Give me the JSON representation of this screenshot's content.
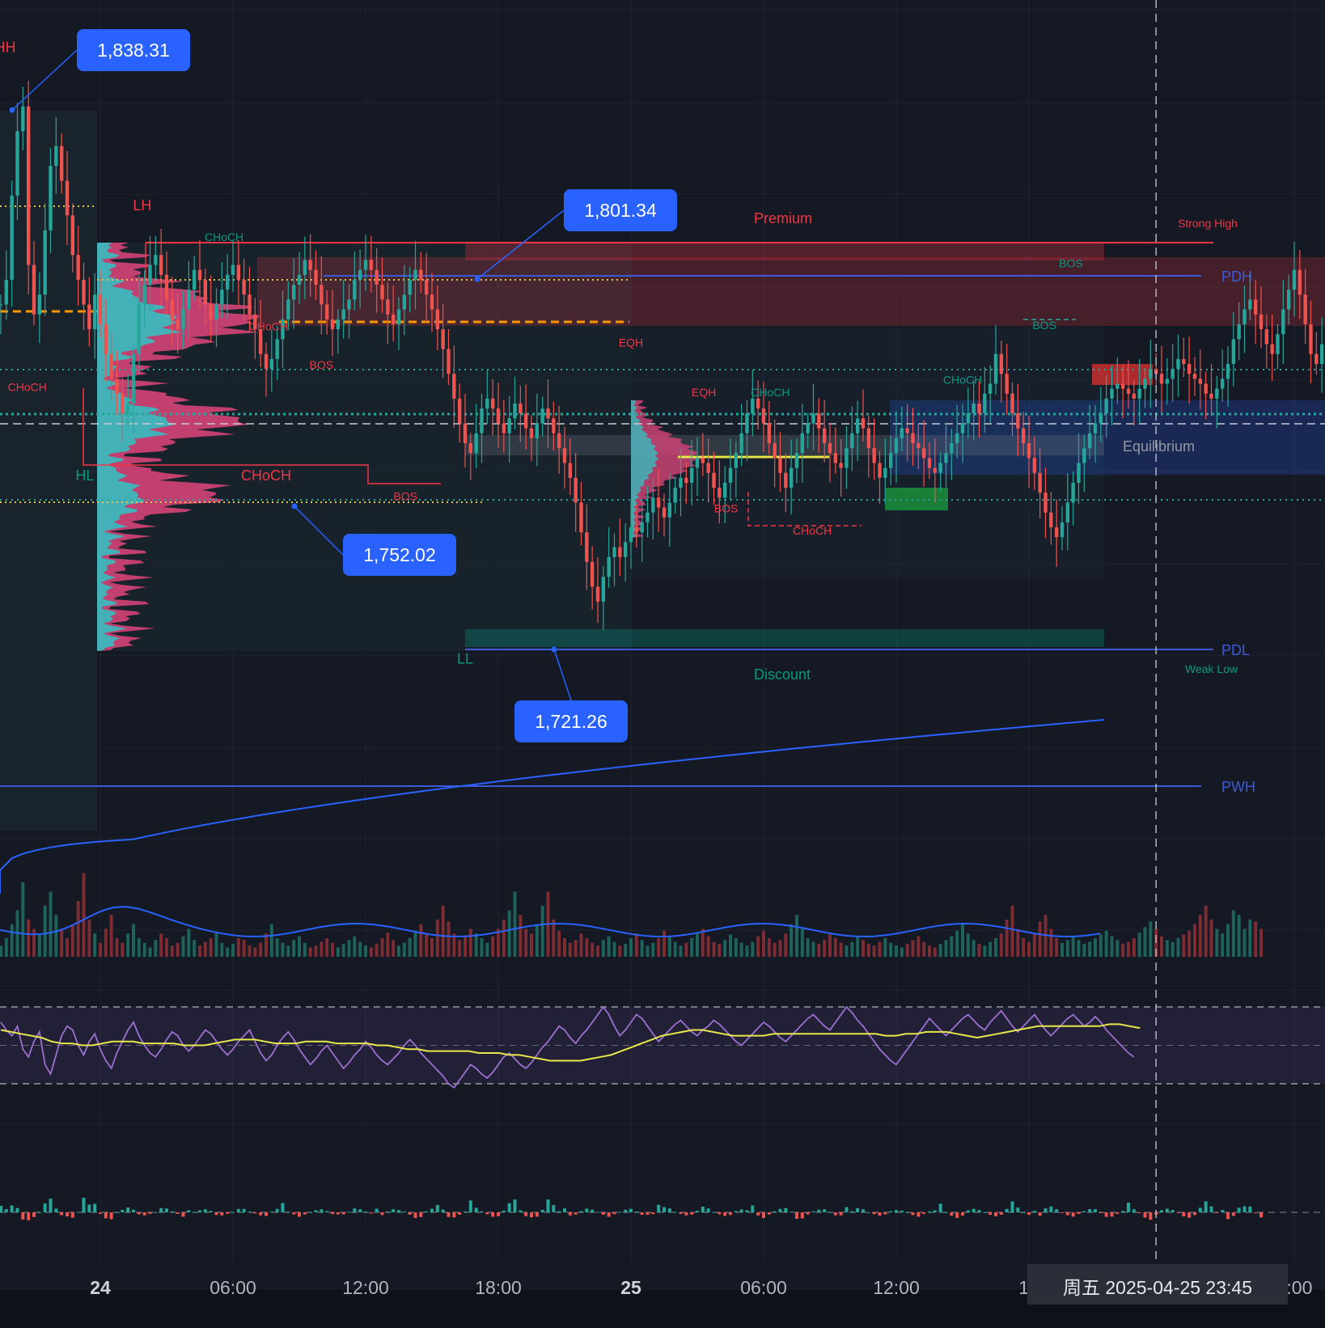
{
  "colors": {
    "background": "#151923",
    "grid": "#1f2430",
    "up": "#26a69a",
    "down": "#ef5350",
    "blue": "#2962ff",
    "callout": "#2962ff",
    "premium": "#f23645",
    "discount": "#089981",
    "rsi": "#9c6fd0",
    "rsi_ma": "#e8e84a",
    "poc": "#ff9800",
    "level_blue": "#3d5bd9"
  },
  "price_axis": {
    "top_price": 1851.5,
    "bottom_price": 1680.0
  },
  "x_axis": {
    "ticks": [
      {
        "label": "24",
        "bold": true,
        "hour": 0
      },
      {
        "label": "06:00",
        "bold": false,
        "hour": 6
      },
      {
        "label": "12:00",
        "bold": false,
        "hour": 12
      },
      {
        "label": "18:00",
        "bold": false,
        "hour": 18
      },
      {
        "label": "25",
        "bold": true,
        "hour": 24
      },
      {
        "label": "06:00",
        "bold": false,
        "hour": 30
      },
      {
        "label": "12:00",
        "bold": false,
        "hour": 36
      },
      {
        "label": "18",
        "bold": false,
        "hour": 42
      },
      {
        "label": "6:00",
        "bold": false,
        "hour": 54
      }
    ]
  },
  "crosshair": {
    "label": "周五 2025-04-25   23:45",
    "hour": 47.75
  },
  "callouts": [
    {
      "label": "1,838.31",
      "price": 1838.31,
      "hour": -4.0
    },
    {
      "label": "1,801.34",
      "price": 1801.34,
      "hour": 17.0
    },
    {
      "label": "1,752.02",
      "price": 1752.02,
      "hour": 8.8
    },
    {
      "label": "1,721.26",
      "price": 1721.26,
      "hour": 20.5
    }
  ],
  "levels": [
    {
      "name": "Premium",
      "price": 1805.5,
      "color": "#f23645"
    },
    {
      "name": "Strong High",
      "price": 1805.5,
      "color": "#f23645"
    },
    {
      "name": "PDH",
      "price": 1801.34,
      "color": "#3d5bd9"
    },
    {
      "name": "Equilibrium",
      "price": 1766.0,
      "color": "#787b86"
    },
    {
      "name": "PDL",
      "price": 1721.26,
      "color": "#3d5bd9"
    },
    {
      "name": "Weak Low",
      "price": 1721.26,
      "color": "#089981"
    },
    {
      "name": "Discount",
      "price": 1721.26,
      "color": "#089981"
    },
    {
      "name": "PWH",
      "price": 1705.0,
      "color": "#3d5bd9"
    }
  ],
  "structure_labels": [
    {
      "text": "HH",
      "hour": -4.3,
      "price": 1841.0,
      "color": "#f23645"
    },
    {
      "text": "LH",
      "hour": 1.9,
      "price": 1809.0,
      "color": "#f23645"
    },
    {
      "text": "HL",
      "hour": -0.7,
      "price": 1754.5,
      "color": "#089981"
    },
    {
      "text": "LL",
      "hour": 16.5,
      "price": 1717.5,
      "color": "#089981"
    },
    {
      "text": "CHoCH",
      "hour": 7.5,
      "price": 1754.5,
      "color": "#f23645"
    },
    {
      "text": "CHoCH",
      "hour": -3.3,
      "price": 1772.5,
      "color": "#f23645"
    },
    {
      "text": "CHoCH",
      "hour": 5.6,
      "price": 1802.8,
      "color": "#089981"
    },
    {
      "text": "CHoCH",
      "hour": 7.6,
      "price": 1784.8,
      "color": "#f23645"
    },
    {
      "text": "BOS",
      "hour": 10.0,
      "price": 1777.0,
      "color": "#f23645"
    },
    {
      "text": "BOS",
      "hour": 13.8,
      "price": 1750.5,
      "color": "#f23645"
    },
    {
      "text": "EQH",
      "hour": 24.0,
      "price": 1781.5,
      "color": "#f23645"
    },
    {
      "text": "EQH",
      "hour": 27.3,
      "price": 1771.5,
      "color": "#f23645"
    },
    {
      "text": "CHoCH",
      "hour": 30.3,
      "price": 1771.5,
      "color": "#089981"
    },
    {
      "text": "BOS",
      "hour": 28.3,
      "price": 1748.0,
      "color": "#f23645"
    },
    {
      "text": "CHoCH",
      "hour": 32.2,
      "price": 1743.5,
      "color": "#f23645"
    },
    {
      "text": "CHoCH",
      "hour": 39.0,
      "price": 1774.0,
      "color": "#089981"
    },
    {
      "text": "BOS",
      "hour": 42.7,
      "price": 1785.0,
      "color": "#089981"
    },
    {
      "text": "BOS",
      "hour": 43.9,
      "price": 1797.5,
      "color": "#089981"
    }
  ],
  "price_series": {
    "start_hour": -4.5,
    "step_hours": 0.25,
    "closes": [
      1790,
      1795,
      1812,
      1825,
      1830,
      1798,
      1788,
      1792,
      1805,
      1818,
      1822,
      1815,
      1808,
      1800,
      1795,
      1790,
      1785,
      1792,
      1786,
      1780,
      1775,
      1772,
      1768,
      1770,
      1780,
      1790,
      1794,
      1798,
      1800,
      1796,
      1791,
      1787,
      1785,
      1789,
      1793,
      1797,
      1795,
      1790,
      1787,
      1790,
      1793,
      1796,
      1798,
      1795,
      1792,
      1788,
      1785,
      1780,
      1777,
      1779,
      1783,
      1787,
      1791,
      1794,
      1796,
      1799,
      1797,
      1794,
      1790,
      1787,
      1785,
      1787,
      1789,
      1791,
      1795,
      1797,
      1799,
      1797,
      1794,
      1791,
      1788,
      1786,
      1789,
      1792,
      1795,
      1797,
      1795,
      1792,
      1789,
      1785,
      1781,
      1776,
      1771,
      1766,
      1762,
      1760,
      1764,
      1769,
      1771,
      1769,
      1766,
      1764,
      1767,
      1770,
      1768,
      1765,
      1763,
      1766,
      1769,
      1767,
      1764,
      1761,
      1758,
      1755,
      1750,
      1744,
      1738,
      1733,
      1730,
      1735,
      1739,
      1741,
      1739,
      1742,
      1745,
      1744,
      1746,
      1748,
      1751,
      1749,
      1747,
      1750,
      1753,
      1755,
      1754,
      1757,
      1759,
      1758,
      1756,
      1753,
      1751,
      1754,
      1757,
      1760,
      1764,
      1768,
      1771,
      1769,
      1766,
      1762,
      1759,
      1756,
      1753,
      1757,
      1760,
      1764,
      1766,
      1768,
      1765,
      1762,
      1760,
      1758,
      1757,
      1761,
      1764,
      1767,
      1765,
      1761,
      1758,
      1755,
      1757,
      1760,
      1763,
      1765,
      1764,
      1762,
      1761,
      1759,
      1757,
      1756,
      1758,
      1760,
      1762,
      1764,
      1766,
      1768,
      1770,
      1768,
      1772,
      1774,
      1780,
      1776,
      1772,
      1768,
      1765,
      1762,
      1759,
      1756,
      1752,
      1748,
      1745,
      1743,
      1746,
      1750,
      1754,
      1758,
      1761,
      1764,
      1766,
      1768,
      1771,
      1773,
      1774,
      1773,
      1772,
      1771,
      1773,
      1775,
      1777,
      1776,
      1774,
      1775,
      1777,
      1779,
      1778,
      1776,
      1775,
      1774,
      1772,
      1771,
      1773,
      1775,
      1778,
      1783,
      1786,
      1789,
      1791,
      1788,
      1785,
      1782,
      1780,
      1784,
      1789,
      1793,
      1797,
      1792,
      1786,
      1780,
      1778,
      1782,
      1780
    ]
  },
  "volume_series": {
    "heights": [
      12,
      20,
      35,
      50,
      80,
      40,
      30,
      25,
      55,
      70,
      45,
      30,
      20,
      35,
      60,
      90,
      40,
      25,
      15,
      30,
      45,
      20,
      15,
      25,
      35,
      20,
      15,
      10,
      18,
      25,
      20,
      12,
      15,
      22,
      30,
      18,
      12,
      16,
      20,
      25,
      15,
      10,
      14,
      20,
      18,
      12,
      10,
      15,
      25,
      35,
      20,
      15,
      12,
      18,
      22,
      15,
      10,
      12,
      16,
      20,
      15,
      10,
      14,
      18,
      22,
      16,
      12,
      10,
      14,
      20,
      26,
      18,
      12,
      15,
      20,
      28,
      35,
      25,
      20,
      40,
      55,
      38,
      25,
      18,
      22,
      30,
      25,
      20,
      15,
      22,
      30,
      40,
      50,
      70,
      45,
      30,
      25,
      35,
      55,
      70,
      40,
      28,
      20,
      15,
      18,
      25,
      20,
      15,
      12,
      18,
      22,
      16,
      12,
      14,
      20,
      25,
      18,
      12,
      15,
      20,
      28,
      22,
      16,
      12,
      15,
      20,
      26,
      30,
      22,
      16,
      14,
      18,
      24,
      20,
      15,
      12,
      16,
      22,
      28,
      20,
      15,
      18,
      25,
      35,
      45,
      30,
      20,
      16,
      14,
      18,
      24,
      20,
      15,
      12,
      16,
      22,
      18,
      14,
      12,
      16,
      20,
      15,
      12,
      10,
      14,
      18,
      22,
      16,
      12,
      10,
      14,
      18,
      22,
      28,
      35,
      25,
      18,
      14,
      12,
      16,
      20,
      25,
      40,
      55,
      30,
      20,
      16,
      25,
      38,
      45,
      30,
      20,
      15,
      18,
      22,
      18,
      14,
      16,
      20,
      24,
      28,
      22,
      18,
      14,
      16,
      20,
      26,
      32,
      38,
      30,
      22,
      18,
      16,
      20,
      24,
      28,
      35,
      45,
      55,
      40,
      30,
      25,
      35,
      50,
      45,
      30,
      40,
      38,
      30
    ]
  },
  "rsi_series": {
    "values": [
      62,
      58,
      55,
      60,
      48,
      44,
      52,
      57,
      40,
      35,
      45,
      55,
      60,
      58,
      50,
      45,
      52,
      56,
      48,
      42,
      38,
      46,
      52,
      58,
      62,
      55,
      50,
      46,
      44,
      48,
      53,
      57,
      55,
      50,
      47,
      50,
      54,
      58,
      56,
      52,
      48,
      45,
      48,
      52,
      55,
      58,
      52,
      46,
      42,
      45,
      50,
      54,
      57,
      53,
      48,
      44,
      40,
      43,
      47,
      50,
      46,
      42,
      38,
      41,
      45,
      48,
      52,
      49,
      45,
      42,
      40,
      43,
      46,
      50,
      53,
      50,
      46,
      43,
      40,
      37,
      34,
      30,
      28,
      32,
      36,
      40,
      38,
      35,
      33,
      36,
      40,
      44,
      46,
      43,
      40,
      38,
      41,
      45,
      49,
      52,
      56,
      60,
      58,
      54,
      51,
      55,
      58,
      62,
      66,
      70,
      66,
      60,
      55,
      58,
      62,
      66,
      64,
      60,
      56,
      52,
      55,
      58,
      61,
      63,
      60,
      57,
      55,
      58,
      60,
      63,
      61,
      58,
      55,
      52,
      50,
      53,
      56,
      59,
      62,
      60,
      57,
      54,
      52,
      55,
      58,
      61,
      64,
      66,
      63,
      60,
      58,
      62,
      66,
      70,
      67,
      63,
      60,
      56,
      52,
      48,
      45,
      42,
      40,
      44,
      48,
      52,
      56,
      60,
      64,
      61,
      58,
      55,
      58,
      61,
      64,
      66,
      63,
      60,
      58,
      62,
      65,
      68,
      64,
      60,
      57,
      60,
      63,
      66,
      62,
      58,
      55,
      58,
      61,
      64,
      66,
      63,
      60,
      62,
      65,
      62,
      58,
      55,
      52,
      49,
      46,
      44
    ]
  },
  "rsi_ma_series": {
    "values": [
      58,
      57,
      56,
      55,
      54,
      52,
      51,
      51,
      50,
      50,
      51,
      52,
      52,
      52,
      51,
      51,
      51,
      51,
      50,
      50,
      50,
      51,
      52,
      53,
      53,
      53,
      52,
      51,
      51,
      51,
      52,
      52,
      52,
      51,
      51,
      51,
      51,
      50,
      50,
      49,
      48,
      48,
      47,
      47,
      47,
      47,
      47,
      46,
      46,
      46,
      45,
      45,
      44,
      43,
      42,
      42,
      42,
      42,
      43,
      44,
      45,
      47,
      49,
      51,
      53,
      55,
      56,
      57,
      58,
      58,
      57,
      56,
      55,
      55,
      55,
      55,
      56,
      56,
      56,
      56,
      56,
      56,
      56,
      56,
      56,
      56,
      56,
      55,
      55,
      56,
      56,
      57,
      57,
      57,
      56,
      55,
      54,
      55,
      56,
      57,
      58,
      59,
      60,
      60,
      60,
      60,
      60,
      60,
      60,
      61,
      61,
      60,
      59
    ]
  }
}
